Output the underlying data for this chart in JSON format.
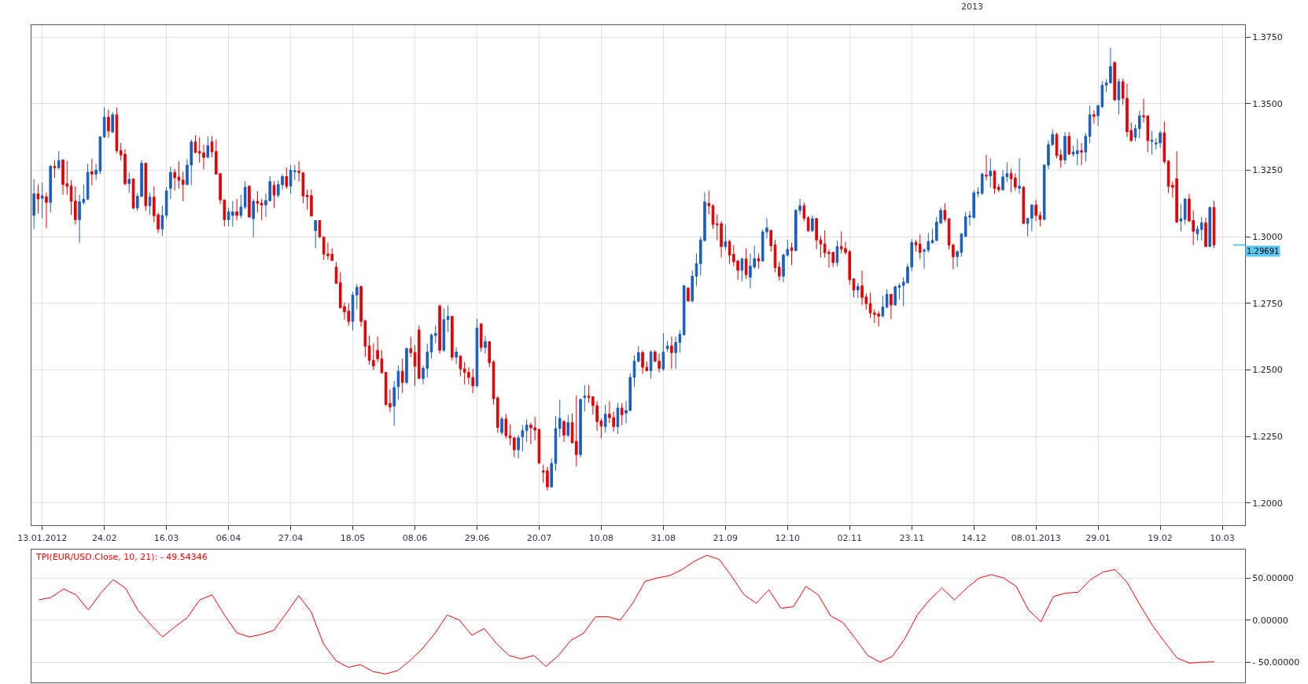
{
  "chart_data": [
    {
      "type": "candlestick",
      "categories": [
        null,
        null,
        "13.01.2012",
        null,
        null,
        null,
        null,
        null,
        null,
        null,
        null,
        null,
        null,
        null,
        null,
        null,
        null,
        "24.02",
        null,
        null,
        null,
        null,
        null,
        null,
        null,
        null,
        null,
        null,
        null,
        null,
        null,
        null,
        "16.03",
        null,
        null,
        null,
        null,
        null,
        null,
        null,
        null,
        null,
        null,
        null,
        null,
        null,
        null,
        "06.04",
        null,
        null,
        null,
        null,
        null,
        null,
        null,
        null,
        null,
        null,
        null,
        null,
        null,
        null,
        "27.04",
        null,
        null,
        null,
        null,
        null,
        null,
        null,
        null,
        null,
        null,
        null,
        null,
        null,
        null,
        "18.05",
        null,
        null,
        null,
        null,
        null,
        null,
        null,
        null,
        null,
        null,
        null,
        null,
        null,
        null,
        "08.06",
        null,
        null,
        null,
        null,
        null,
        null,
        null,
        null,
        null,
        null,
        null,
        null,
        null,
        null,
        "29.06",
        null,
        null,
        null,
        null,
        null,
        null,
        null,
        null,
        null,
        null,
        null,
        null,
        null,
        null,
        "20.07",
        null,
        null,
        null,
        null,
        null,
        null,
        null,
        null,
        null,
        null,
        null,
        null,
        null,
        null,
        "10.08",
        null,
        null,
        null,
        null,
        null,
        null,
        null,
        null,
        null,
        null,
        null,
        null,
        null,
        null,
        "31.08",
        null,
        null,
        null,
        null,
        null,
        null,
        null,
        null,
        null,
        null,
        null,
        null,
        null,
        null,
        "21.09",
        null,
        null,
        null,
        null,
        null,
        null,
        null,
        null,
        null,
        null,
        null,
        null,
        null,
        null,
        "12.10",
        null,
        null,
        null,
        null,
        null,
        null,
        null,
        null,
        null,
        null,
        null,
        null,
        null,
        null,
        "02.11",
        null,
        null,
        null,
        null,
        null,
        null,
        null,
        null,
        null,
        null,
        null,
        null,
        null,
        null,
        "23.11",
        null,
        null,
        null,
        null,
        null,
        null,
        null,
        null,
        null,
        null,
        null,
        null,
        null,
        null,
        "14.12",
        null,
        null,
        null,
        null,
        null,
        null,
        null,
        null,
        null,
        null,
        null,
        null,
        null,
        null,
        "08.01.2013",
        null,
        null,
        null,
        null,
        null,
        null,
        null,
        null,
        null,
        null,
        null,
        null,
        null,
        null,
        "29.01",
        null,
        null,
        null,
        null,
        null,
        null,
        null,
        null,
        null,
        null,
        null,
        null,
        null,
        null,
        "19.02",
        null,
        null,
        null,
        null,
        null,
        null,
        null,
        null,
        null,
        null,
        null,
        null,
        null,
        null,
        "10.03",
        null,
        null,
        null,
        null,
        null
      ],
      "ohlc": [
        [
          1.308,
          1.3216,
          1.3029,
          1.3161
        ],
        [
          1.3161,
          1.3196,
          1.3088,
          1.3142
        ],
        [
          1.3144,
          1.3204,
          1.3069,
          1.3154
        ],
        [
          1.315,
          1.3166,
          1.3032,
          1.3129
        ],
        [
          1.3129,
          1.3269,
          1.3091,
          1.3265
        ],
        [
          1.3264,
          1.3287,
          1.3222,
          1.3259
        ],
        [
          1.3259,
          1.3321,
          1.3254,
          1.3286
        ],
        [
          1.3288,
          1.3288,
          1.3158,
          1.3196
        ],
        [
          1.3199,
          1.3284,
          1.3158,
          1.3189
        ],
        [
          1.319,
          1.3212,
          1.3082,
          1.3133
        ],
        [
          1.3134,
          1.3189,
          1.3046,
          1.3064
        ],
        [
          1.3064,
          1.3158,
          1.2976,
          1.3131
        ],
        [
          1.3129,
          1.3196,
          1.3121,
          1.3141
        ],
        [
          1.3141,
          1.3274,
          1.3138,
          1.3242
        ],
        [
          1.3244,
          1.3292,
          1.3193,
          1.3235
        ],
        [
          1.3235,
          1.3274,
          1.3214,
          1.325
        ],
        [
          1.3247,
          1.3377,
          1.3235,
          1.3375
        ],
        [
          1.3375,
          1.3485,
          1.3371,
          1.3449
        ],
        [
          1.3449,
          1.3478,
          1.3371,
          1.3397
        ],
        [
          1.3393,
          1.3468,
          1.339,
          1.3458
        ],
        [
          1.3458,
          1.3485,
          1.3314,
          1.3323
        ],
        [
          1.3324,
          1.3352,
          1.3286,
          1.3307
        ],
        [
          1.331,
          1.3329,
          1.3193,
          1.3199
        ],
        [
          1.3199,
          1.3241,
          1.3164,
          1.3216
        ],
        [
          1.3217,
          1.3217,
          1.3103,
          1.3108
        ],
        [
          1.3108,
          1.3163,
          1.3097,
          1.3152
        ],
        [
          1.3152,
          1.3288,
          1.3148,
          1.3276
        ],
        [
          1.3276,
          1.3276,
          1.3098,
          1.3116
        ],
        [
          1.3116,
          1.3166,
          1.3083,
          1.3149
        ],
        [
          1.3149,
          1.3189,
          1.3055,
          1.3079
        ],
        [
          1.3082,
          1.3091,
          1.3014,
          1.3029
        ],
        [
          1.3029,
          1.3116,
          1.3004,
          1.308
        ],
        [
          1.308,
          1.3186,
          1.3069,
          1.3172
        ],
        [
          1.3182,
          1.3263,
          1.3141,
          1.3242
        ],
        [
          1.3242,
          1.3254,
          1.3174,
          1.3222
        ],
        [
          1.3224,
          1.3283,
          1.318,
          1.3212
        ],
        [
          1.3213,
          1.3244,
          1.3133,
          1.3196
        ],
        [
          1.3196,
          1.3292,
          1.3193,
          1.3269
        ],
        [
          1.3269,
          1.3365,
          1.3193,
          1.3356
        ],
        [
          1.3356,
          1.3381,
          1.3314,
          1.3316
        ],
        [
          1.332,
          1.3373,
          1.3278,
          1.3314
        ],
        [
          1.3315,
          1.3345,
          1.3254,
          1.3298
        ],
        [
          1.3298,
          1.3377,
          1.3297,
          1.3342
        ],
        [
          1.3356,
          1.3377,
          1.3298,
          1.3319
        ],
        [
          1.332,
          1.3365,
          1.3235,
          1.3235
        ],
        [
          1.3237,
          1.3237,
          1.3123,
          1.3138
        ],
        [
          1.3138,
          1.3138,
          1.3039,
          1.3064
        ],
        [
          1.3064,
          1.311,
          1.3039,
          1.3093
        ],
        [
          1.308,
          1.3134,
          1.3037,
          1.3093
        ],
        [
          1.3094,
          1.3142,
          1.3061,
          1.308
        ],
        [
          1.308,
          1.3158,
          1.3069,
          1.3112
        ],
        [
          1.3112,
          1.3209,
          1.3103,
          1.3186
        ],
        [
          1.319,
          1.319,
          1.3071,
          1.3074
        ],
        [
          1.3068,
          1.3142,
          1.2997,
          1.3133
        ],
        [
          1.3133,
          1.3171,
          1.3091,
          1.3126
        ],
        [
          1.3126,
          1.3142,
          1.3061,
          1.3119
        ],
        [
          1.3119,
          1.3163,
          1.3074,
          1.3136
        ],
        [
          1.3135,
          1.3228,
          1.3132,
          1.3207
        ],
        [
          1.3193,
          1.3209,
          1.3108,
          1.3156
        ],
        [
          1.3156,
          1.3212,
          1.3147,
          1.3196
        ],
        [
          1.3195,
          1.3235,
          1.3177,
          1.3226
        ],
        [
          1.3226,
          1.326,
          1.318,
          1.3189
        ],
        [
          1.319,
          1.3269,
          1.3161,
          1.325
        ],
        [
          1.3244,
          1.3269,
          1.3212,
          1.3248
        ],
        [
          1.3246,
          1.3284,
          1.3207,
          1.3241
        ],
        [
          1.324,
          1.324,
          1.3126,
          1.3153
        ],
        [
          1.3156,
          1.3177,
          1.3101,
          1.315
        ],
        [
          1.3154,
          1.3177,
          1.3078,
          1.3078
        ],
        [
          1.3023,
          1.3061,
          1.2957,
          1.3061
        ],
        [
          1.3061,
          1.3061,
          1.2994,
          1.3
        ],
        [
          1.2999,
          1.2999,
          1.2913,
          1.2935
        ],
        [
          1.2935,
          1.2978,
          1.2913,
          1.2929
        ],
        [
          1.2934,
          1.2957,
          1.2911,
          1.2911
        ],
        [
          1.2886,
          1.2904,
          1.2823,
          1.2825
        ],
        [
          1.2828,
          1.2867,
          1.2731,
          1.2733
        ],
        [
          1.2738,
          1.2753,
          1.2689,
          1.2718
        ],
        [
          1.2721,
          1.275,
          1.2666,
          1.2682
        ],
        [
          1.2682,
          1.2793,
          1.2648,
          1.2781
        ],
        [
          1.2781,
          1.2823,
          1.2728,
          1.281
        ],
        [
          1.2813,
          1.2817,
          1.2663,
          1.2682
        ],
        [
          1.2685,
          1.2685,
          1.2549,
          1.2589
        ],
        [
          1.259,
          1.2629,
          1.252,
          1.2536
        ],
        [
          1.2536,
          1.26,
          1.25,
          1.2515
        ],
        [
          1.2573,
          1.2625,
          1.2529,
          1.2542
        ],
        [
          1.2542,
          1.2574,
          1.2489,
          1.2489
        ],
        [
          1.2491,
          1.2491,
          1.2364,
          1.237
        ],
        [
          1.2374,
          1.2427,
          1.2342,
          1.2361
        ],
        [
          1.2364,
          1.2459,
          1.2291,
          1.2434
        ],
        [
          1.2437,
          1.2517,
          1.2389,
          1.2495
        ],
        [
          1.2495,
          1.2542,
          1.2414,
          1.2453
        ],
        [
          1.2453,
          1.2584,
          1.2446,
          1.258
        ],
        [
          1.258,
          1.2625,
          1.2548,
          1.2565
        ],
        [
          1.2565,
          1.2593,
          1.244,
          1.2514
        ],
        [
          1.265,
          1.2667,
          1.2468,
          1.2468
        ],
        [
          1.2468,
          1.2517,
          1.2446,
          1.2506
        ],
        [
          1.2506,
          1.2599,
          1.2471,
          1.2567
        ],
        [
          1.2567,
          1.2637,
          1.2542,
          1.2631
        ],
        [
          1.2629,
          1.2667,
          1.26,
          1.2637
        ],
        [
          1.274,
          1.2746,
          1.2561,
          1.2574
        ],
        [
          1.2574,
          1.2731,
          1.2568,
          1.2689
        ],
        [
          1.2689,
          1.2742,
          1.2641,
          1.2701
        ],
        [
          1.2701,
          1.2701,
          1.2535,
          1.2548
        ],
        [
          1.2548,
          1.2584,
          1.2523,
          1.2567
        ],
        [
          1.2552,
          1.2555,
          1.2476,
          1.2504
        ],
        [
          1.2504,
          1.253,
          1.2446,
          1.2491
        ],
        [
          1.2491,
          1.251,
          1.2446,
          1.2472
        ],
        [
          1.2472,
          1.2504,
          1.2412,
          1.244
        ],
        [
          1.244,
          1.2693,
          1.2434,
          1.2657
        ],
        [
          1.2673,
          1.2673,
          1.2568,
          1.2584
        ],
        [
          1.2584,
          1.2628,
          1.2561,
          1.2606
        ],
        [
          1.2606,
          1.2606,
          1.251,
          1.2527
        ],
        [
          1.253,
          1.2536,
          1.237,
          1.2392
        ],
        [
          1.2395,
          1.2402,
          1.2264,
          1.2284
        ],
        [
          1.2265,
          1.2325,
          1.2255,
          1.2316
        ],
        [
          1.2316,
          1.2335,
          1.2242,
          1.2253
        ],
        [
          1.2253,
          1.2296,
          1.2217,
          1.2245
        ],
        [
          1.2245,
          1.2249,
          1.2172,
          1.22
        ],
        [
          1.22,
          1.2255,
          1.2168,
          1.2245
        ],
        [
          1.2249,
          1.2293,
          1.2194,
          1.2272
        ],
        [
          1.2272,
          1.2315,
          1.223,
          1.2293
        ],
        [
          1.2293,
          1.2302,
          1.2221,
          1.2283
        ],
        [
          1.2283,
          1.2324,
          1.2236,
          1.2274
        ],
        [
          1.2277,
          1.2277,
          1.2147,
          1.215
        ],
        [
          1.2121,
          1.2144,
          1.2077,
          1.2116
        ],
        [
          1.2121,
          1.2137,
          1.2047,
          1.2061
        ],
        [
          1.2061,
          1.2168,
          1.2057,
          1.2149
        ],
        [
          1.2149,
          1.2327,
          1.2121,
          1.228
        ],
        [
          1.228,
          1.2388,
          1.2248,
          1.2318
        ],
        [
          1.2306,
          1.2312,
          1.223,
          1.2255
        ],
        [
          1.2255,
          1.2331,
          1.2248,
          1.2302
        ],
        [
          1.2302,
          1.2337,
          1.2223,
          1.2227
        ],
        [
          1.2232,
          1.2404,
          1.2138,
          1.2182
        ],
        [
          1.2182,
          1.2392,
          1.2172,
          1.2389
        ],
        [
          1.2396,
          1.2443,
          1.2344,
          1.2402
        ],
        [
          1.2402,
          1.2443,
          1.2376,
          1.2396
        ],
        [
          1.2399,
          1.2402,
          1.2332,
          1.2366
        ],
        [
          1.2366,
          1.2383,
          1.2271,
          1.2306
        ],
        [
          1.2308,
          1.2318,
          1.2244,
          1.2289
        ],
        [
          1.2287,
          1.2369,
          1.2265,
          1.2334
        ],
        [
          1.2334,
          1.2383,
          1.23,
          1.2321
        ],
        [
          1.2321,
          1.2344,
          1.2268,
          1.2287
        ],
        [
          1.2287,
          1.2376,
          1.2259,
          1.2357
        ],
        [
          1.2357,
          1.2376,
          1.2293,
          1.2332
        ],
        [
          1.2338,
          1.2383,
          1.23,
          1.2348
        ],
        [
          1.2348,
          1.2488,
          1.2344,
          1.2472
        ],
        [
          1.2472,
          1.2555,
          1.2437,
          1.2533
        ],
        [
          1.2533,
          1.259,
          1.2527,
          1.2565
        ],
        [
          1.2565,
          1.2574,
          1.2485,
          1.251
        ],
        [
          1.251,
          1.2532,
          1.2494,
          1.2497
        ],
        [
          1.2497,
          1.2574,
          1.2468,
          1.2567
        ],
        [
          1.2567,
          1.2574,
          1.2529,
          1.2533
        ],
        [
          1.2533,
          1.2561,
          1.2491,
          1.2506
        ],
        [
          1.2504,
          1.2638,
          1.2497,
          1.2567
        ],
        [
          1.258,
          1.2608,
          1.2568,
          1.259
        ],
        [
          1.259,
          1.2625,
          1.2504,
          1.2565
        ],
        [
          1.2565,
          1.2625,
          1.2504,
          1.2603
        ],
        [
          1.2603,
          1.265,
          1.2565,
          1.2634
        ],
        [
          1.2632,
          1.2819,
          1.2629,
          1.2816
        ],
        [
          1.2807,
          1.281,
          1.2756,
          1.2759
        ],
        [
          1.2759,
          1.2874,
          1.2753,
          1.2852
        ],
        [
          1.2852,
          1.2937,
          1.2816,
          1.2899
        ],
        [
          1.2899,
          1.3001,
          1.2854,
          1.2988
        ],
        [
          1.2986,
          1.3167,
          1.2982,
          1.3131
        ],
        [
          1.3125,
          1.3173,
          1.3084,
          1.3116
        ],
        [
          1.3116,
          1.3122,
          1.3029,
          1.3046
        ],
        [
          1.3048,
          1.3084,
          1.2988,
          1.3045
        ],
        [
          1.3049,
          1.3058,
          1.2922,
          1.2963
        ],
        [
          1.2963,
          1.3046,
          1.295,
          1.2982
        ],
        [
          1.2982,
          1.2989,
          1.2899,
          1.2931
        ],
        [
          1.2934,
          1.2969,
          1.2889,
          1.2906
        ],
        [
          1.2909,
          1.2912,
          1.2838,
          1.2874
        ],
        [
          1.2874,
          1.2922,
          1.2833,
          1.2916
        ],
        [
          1.2916,
          1.2956,
          1.2842,
          1.2857
        ],
        [
          1.2848,
          1.2937,
          1.2807,
          1.289
        ],
        [
          1.2886,
          1.2967,
          1.288,
          1.2918
        ],
        [
          1.2918,
          1.2937,
          1.288,
          1.2909
        ],
        [
          1.2909,
          1.3027,
          1.2906,
          1.3018
        ],
        [
          1.3018,
          1.3069,
          1.2995,
          1.3033
        ],
        [
          1.3024,
          1.3024,
          1.2944,
          1.2966
        ],
        [
          1.2969,
          1.2989,
          1.2867,
          1.2884
        ],
        [
          1.2886,
          1.2906,
          1.2835,
          1.2852
        ],
        [
          1.2852,
          1.2937,
          1.2829,
          1.2931
        ],
        [
          1.2931,
          1.2989,
          1.2925,
          1.2953
        ],
        [
          1.2959,
          1.2978,
          1.2893,
          1.2948
        ],
        [
          1.2948,
          1.3103,
          1.2944,
          1.3099
        ],
        [
          1.3099,
          1.3142,
          1.3084,
          1.3116
        ],
        [
          1.3116,
          1.3129,
          1.3059,
          1.3069
        ],
        [
          1.3071,
          1.3078,
          1.3018,
          1.3023
        ],
        [
          1.3023,
          1.308,
          1.3018,
          1.3068
        ],
        [
          1.3068,
          1.3071,
          1.2953,
          1.2988
        ],
        [
          1.2988,
          1.3004,
          1.2922,
          1.2973
        ],
        [
          1.2973,
          1.3024,
          1.2922,
          1.294
        ],
        [
          1.2941,
          1.2953,
          1.2884,
          1.2937
        ],
        [
          1.2941,
          1.2944,
          1.2886,
          1.2903
        ],
        [
          1.2903,
          1.2986,
          1.2889,
          1.2963
        ],
        [
          1.2963,
          1.302,
          1.2937,
          1.2954
        ],
        [
          1.2956,
          1.2982,
          1.2931,
          1.2941
        ],
        [
          1.2944,
          1.295,
          1.282,
          1.2839
        ],
        [
          1.2842,
          1.2842,
          1.2772,
          1.28
        ],
        [
          1.28,
          1.2827,
          1.2769,
          1.2814
        ],
        [
          1.2816,
          1.2874,
          1.2744,
          1.2772
        ],
        [
          1.2774,
          1.2787,
          1.2727,
          1.2749
        ],
        [
          1.2749,
          1.2791,
          1.2695,
          1.2714
        ],
        [
          1.2714,
          1.2727,
          1.2676,
          1.2708
        ],
        [
          1.271,
          1.2721,
          1.2663,
          1.2702
        ],
        [
          1.2702,
          1.2778,
          1.2698,
          1.2736
        ],
        [
          1.2736,
          1.2803,
          1.2731,
          1.2784
        ],
        [
          1.2784,
          1.2784,
          1.2691,
          1.2744
        ],
        [
          1.2744,
          1.2816,
          1.274,
          1.2812
        ],
        [
          1.281,
          1.2826,
          1.2765,
          1.2816
        ],
        [
          1.2817,
          1.2848,
          1.274,
          1.283
        ],
        [
          1.2827,
          1.2899,
          1.2824,
          1.2886
        ],
        [
          1.2886,
          1.2991,
          1.2871,
          1.2978
        ],
        [
          1.2978,
          1.2988,
          1.2944,
          1.2969
        ],
        [
          1.2972,
          1.3008,
          1.2916,
          1.2941
        ],
        [
          1.2946,
          1.2957,
          1.288,
          1.295
        ],
        [
          1.295,
          1.3014,
          1.2941,
          1.2982
        ],
        [
          1.2978,
          1.3029,
          1.2973,
          1.2986
        ],
        [
          1.2986,
          1.3075,
          1.2982,
          1.3055
        ],
        [
          1.3052,
          1.311,
          1.3046,
          1.3099
        ],
        [
          1.3099,
          1.3126,
          1.3055,
          1.3065
        ],
        [
          1.3068,
          1.3068,
          1.2953,
          1.2969
        ],
        [
          1.2969,
          1.2973,
          1.2878,
          1.2925
        ],
        [
          1.2925,
          1.295,
          1.2886,
          1.2944
        ],
        [
          1.2941,
          1.3014,
          1.2925,
          1.301
        ],
        [
          1.3001,
          1.3093,
          1.2999,
          1.3075
        ],
        [
          1.3074,
          1.3097,
          1.3042,
          1.3078
        ],
        [
          1.3072,
          1.3174,
          1.3068,
          1.3165
        ],
        [
          1.3163,
          1.3186,
          1.3148,
          1.3167
        ],
        [
          1.3163,
          1.3241,
          1.3157,
          1.3235
        ],
        [
          1.3231,
          1.3307,
          1.3212,
          1.3228
        ],
        [
          1.3228,
          1.3295,
          1.3186,
          1.3246
        ],
        [
          1.3246,
          1.325,
          1.3161,
          1.3182
        ],
        [
          1.3186,
          1.3199,
          1.3167,
          1.3177
        ],
        [
          1.3176,
          1.325,
          1.3173,
          1.3225
        ],
        [
          1.3225,
          1.3279,
          1.3205,
          1.3237
        ],
        [
          1.3237,
          1.3254,
          1.3167,
          1.3218
        ],
        [
          1.3221,
          1.3237,
          1.3173,
          1.3186
        ],
        [
          1.3182,
          1.3295,
          1.3161,
          1.319
        ],
        [
          1.3186,
          1.319,
          1.305,
          1.305
        ],
        [
          1.305,
          1.3069,
          1.3001,
          1.3069
        ],
        [
          1.3069,
          1.3122,
          1.302,
          1.3119
        ],
        [
          1.3119,
          1.3138,
          1.3059,
          1.308
        ],
        [
          1.308,
          1.3094,
          1.3039,
          1.3065
        ],
        [
          1.3065,
          1.3272,
          1.3061,
          1.3269
        ],
        [
          1.3269,
          1.3362,
          1.3254,
          1.3346
        ],
        [
          1.3346,
          1.3403,
          1.3339,
          1.3384
        ],
        [
          1.3384,
          1.339,
          1.3295,
          1.3305
        ],
        [
          1.3307,
          1.3327,
          1.3259,
          1.3288
        ],
        [
          1.3288,
          1.3393,
          1.3273,
          1.3377
        ],
        [
          1.3377,
          1.3393,
          1.3307,
          1.331
        ],
        [
          1.331,
          1.3342,
          1.3301,
          1.3318
        ],
        [
          1.3312,
          1.3367,
          1.3269,
          1.3323
        ],
        [
          1.3323,
          1.3352,
          1.3269,
          1.3318
        ],
        [
          1.3318,
          1.339,
          1.3282,
          1.3377
        ],
        [
          1.3377,
          1.3492,
          1.3352,
          1.3458
        ],
        [
          1.3458,
          1.3474,
          1.3425,
          1.3452
        ],
        [
          1.3454,
          1.3496,
          1.3416,
          1.3492
        ],
        [
          1.3488,
          1.3585,
          1.3483,
          1.3569
        ],
        [
          1.3569,
          1.3591,
          1.3543,
          1.3578
        ],
        [
          1.3578,
          1.3709,
          1.3575,
          1.3639
        ],
        [
          1.3654,
          1.3658,
          1.3509,
          1.3514
        ],
        [
          1.3514,
          1.3594,
          1.346,
          1.3582
        ],
        [
          1.3582,
          1.3594,
          1.3496,
          1.352
        ],
        [
          1.352,
          1.3575,
          1.3374,
          1.3394
        ],
        [
          1.3399,
          1.3429,
          1.3356,
          1.3361
        ],
        [
          1.3374,
          1.3422,
          1.3358,
          1.3406
        ],
        [
          1.3406,
          1.3473,
          1.3369,
          1.3454
        ],
        [
          1.3454,
          1.3518,
          1.3429,
          1.345
        ],
        [
          1.3454,
          1.3454,
          1.3318,
          1.3361
        ],
        [
          1.3358,
          1.3397,
          1.3308,
          1.3363
        ],
        [
          1.3348,
          1.3371,
          1.3327,
          1.3352
        ],
        [
          1.3352,
          1.3397,
          1.3333,
          1.339
        ],
        [
          1.339,
          1.3432,
          1.3273,
          1.3282
        ],
        [
          1.3284,
          1.3288,
          1.3164,
          1.3189
        ],
        [
          1.3193,
          1.3208,
          1.3147,
          1.3186
        ],
        [
          1.3218,
          1.332,
          1.3052,
          1.3055
        ],
        [
          1.3059,
          1.3122,
          1.302,
          1.3068
        ],
        [
          1.3065,
          1.3144,
          1.3046,
          1.3142
        ],
        [
          1.3142,
          1.3161,
          1.3055,
          1.3059
        ],
        [
          1.3061,
          1.3099,
          1.2969,
          1.302
        ],
        [
          1.3011,
          1.3042,
          1.2986,
          1.3029
        ],
        [
          1.3027,
          1.3074,
          1.2986,
          1.3052
        ],
        [
          1.3052,
          1.3071,
          1.2963,
          1.2963
        ],
        [
          1.2963,
          1.3112,
          1.2963,
          1.311
        ],
        [
          1.311,
          1.3135,
          1.2957,
          1.29691
        ],
        null,
        null,
        null,
        null,
        null,
        null,
        null
      ],
      "ylim": [
        1.1916,
        1.3794
      ],
      "yticks": [
        {
          "value": 1.2,
          "label": "1.2000"
        },
        {
          "value": 1.225,
          "label": "1.2250"
        },
        {
          "value": 1.25,
          "label": "1.2500"
        },
        {
          "value": 1.275,
          "label": "1.2750"
        },
        {
          "value": 1.3,
          "label": "1.3000"
        },
        {
          "value": 1.325,
          "label": "1.3250"
        },
        {
          "value": 1.35,
          "label": "1.3500"
        },
        {
          "value": 1.375,
          "label": "1.3750"
        }
      ],
      "ref_lines": [
        {
          "axis": "y",
          "value": 1.29691,
          "label": "1.29691",
          "color": "#5bc8f5"
        }
      ],
      "annotations": [
        "2013"
      ],
      "grid": true
    },
    {
      "type": "line",
      "title": "TPI(EUR/USD.Close, 10, 21): - 49.54346",
      "categories": [
        null,
        null,
        null,
        null,
        null,
        null,
        null,
        null,
        null,
        null,
        null,
        null,
        null,
        null,
        null,
        null,
        null,
        null,
        null,
        null,
        null,
        null,
        null,
        null,
        null,
        null,
        null,
        null,
        null,
        null,
        null,
        null,
        null,
        null,
        null,
        null,
        null,
        null,
        null,
        null,
        null,
        null,
        null,
        null,
        null,
        null,
        null,
        null,
        null,
        null,
        null,
        null,
        null,
        null,
        null,
        null,
        null,
        null,
        null,
        null,
        null,
        null,
        null,
        null,
        null,
        null,
        null,
        null,
        null,
        null,
        null,
        null,
        null,
        null,
        null,
        null,
        null,
        null,
        null,
        null,
        null,
        null,
        null,
        null,
        null,
        null,
        null,
        null,
        null,
        null,
        null,
        null,
        null,
        null,
        null,
        null,
        null,
        null
      ],
      "series": [
        {
          "color": "#ff0000",
          "values": [
            24,
            27,
            37,
            30,
            12,
            32,
            48,
            38,
            12,
            -5,
            -20,
            -8,
            3,
            24,
            30,
            6,
            -15,
            -20,
            -17,
            -12,
            8,
            29,
            10,
            -28,
            -48,
            -56,
            -53,
            -61,
            -64,
            -60,
            -48,
            -34,
            -16,
            6,
            0,
            -18,
            -10,
            -28,
            -42,
            -46,
            -42,
            -55,
            -42,
            -24,
            -16,
            4,
            4,
            0,
            20,
            46,
            50,
            53,
            60,
            70,
            77,
            72,
            52,
            30,
            20,
            36,
            14,
            16,
            40,
            30,
            5,
            -3,
            -22,
            -42,
            -50,
            -43,
            -22,
            6,
            24,
            38,
            24,
            38,
            50,
            54,
            50,
            40,
            12,
            -2,
            28,
            32,
            33,
            48,
            57,
            60,
            44,
            18,
            -6,
            -26,
            -45,
            -51,
            -50,
            -49.5,
            null,
            null
          ]
        }
      ],
      "ylim": [
        -74,
        84
      ],
      "yticks": [
        {
          "value": -50,
          "label": "- 50.00000"
        },
        {
          "value": 0,
          "label": "0.00000"
        },
        {
          "value": 50,
          "label": "50.00000"
        }
      ],
      "tick_labels": "y",
      "grid": "y"
    }
  ]
}
